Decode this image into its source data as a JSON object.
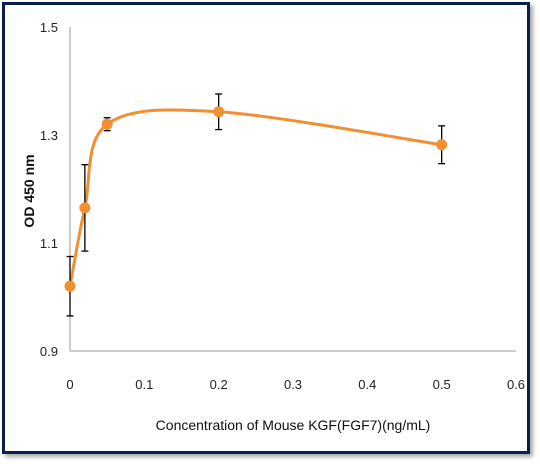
{
  "chart_data": {
    "type": "scatter",
    "title": "",
    "xlabel": "Concentration of Mouse KGF(FGF7)(ng/mL)",
    "ylabel": "OD 450 nm",
    "xlim": [
      0,
      0.6
    ],
    "ylim": [
      0.9,
      1.5
    ],
    "xticks": [
      "0",
      "0.1",
      "0.2",
      "0.3",
      "0.4",
      "0.5",
      "0.6"
    ],
    "yticks": [
      "0.9",
      "1.1",
      "1.3",
      "1.5"
    ],
    "grid": false,
    "legend": "none",
    "series_color": "#f28f33",
    "points": [
      {
        "x": 0,
        "y": 1.02,
        "err": 0.055
      },
      {
        "x": 0.02,
        "y": 1.165,
        "err": 0.08
      },
      {
        "x": 0.05,
        "y": 1.32,
        "err": 0.012
      },
      {
        "x": 0.2,
        "y": 1.343,
        "err": 0.033
      },
      {
        "x": 0.5,
        "y": 1.282,
        "err": 0.035
      }
    ],
    "smooth": true
  }
}
